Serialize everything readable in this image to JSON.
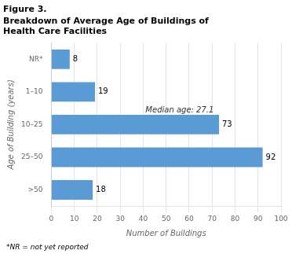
{
  "chart_data": {
    "type": "bar",
    "orientation": "horizontal",
    "title": "Figure 3.",
    "subtitle": "Breakdown of Average Age of Buildings of\nHealth Care Facilities",
    "categories": [
      "NR*",
      "1–10",
      "10–25",
      "25–50",
      ">50"
    ],
    "values": [
      8,
      19,
      73,
      92,
      18
    ],
    "color": "#5b9bd5",
    "xlabel": "Number of Buildings",
    "ylabel": "Age of Building (years)",
    "xlim": [
      0,
      100
    ],
    "xticks": [
      0,
      10,
      20,
      30,
      40,
      50,
      60,
      70,
      80,
      90,
      100
    ],
    "grid": "x",
    "data_labels": true,
    "annotations": [
      {
        "text": "Median age: 27.1",
        "x": 41,
        "y": "10–25"
      }
    ],
    "footnote": "*NR = not yet reported"
  }
}
